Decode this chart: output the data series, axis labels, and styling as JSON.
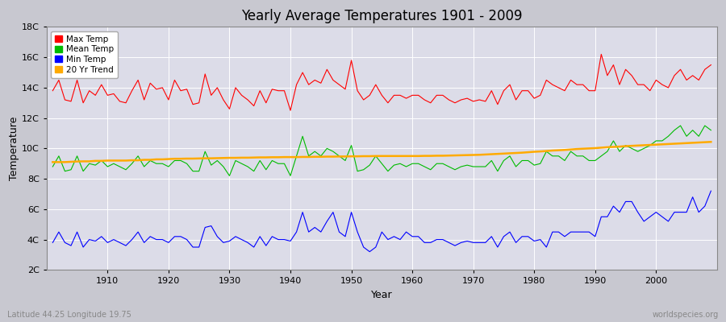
{
  "title": "Yearly Average Temperatures 1901 - 2009",
  "xlabel": "Year",
  "ylabel": "Temperature",
  "bottom_left": "Latitude 44.25 Longitude 19.75",
  "bottom_right": "worldspecies.org",
  "year_start": 1901,
  "year_end": 2009,
  "yticks": [
    2,
    4,
    6,
    8,
    10,
    12,
    14,
    16,
    18
  ],
  "ytick_labels": [
    "2C",
    "4C",
    "6C",
    "8C",
    "10C",
    "12C",
    "14C",
    "16C",
    "18C"
  ],
  "colors": {
    "max": "#ff0000",
    "mean": "#00bb00",
    "min": "#0000ff",
    "trend": "#ffaa00",
    "fig_bg": "#c8c8d0",
    "plot_bg": "#dcdce8",
    "grid": "#ffffff"
  },
  "legend": {
    "max": "Max Temp",
    "mean": "Mean Temp",
    "min": "Min Temp",
    "trend": "20 Yr Trend"
  },
  "max_temp": [
    13.8,
    14.5,
    13.2,
    13.1,
    14.5,
    13.0,
    13.8,
    13.5,
    14.2,
    13.5,
    13.6,
    13.1,
    13.0,
    13.8,
    14.5,
    13.2,
    14.3,
    13.9,
    14.0,
    13.2,
    14.5,
    13.8,
    13.9,
    12.9,
    13.0,
    14.9,
    13.5,
    14.0,
    13.2,
    12.6,
    14.0,
    13.5,
    13.2,
    12.8,
    13.8,
    13.0,
    13.9,
    13.8,
    13.8,
    12.5,
    14.2,
    15.0,
    14.2,
    14.5,
    14.3,
    15.2,
    14.5,
    14.2,
    13.9,
    15.8,
    13.8,
    13.2,
    13.5,
    14.2,
    13.5,
    13.0,
    13.5,
    13.5,
    13.3,
    13.5,
    13.5,
    13.2,
    13.0,
    13.5,
    13.5,
    13.2,
    13.0,
    13.2,
    13.3,
    13.1,
    13.2,
    13.1,
    13.8,
    12.9,
    13.8,
    14.2,
    13.2,
    13.8,
    13.8,
    13.3,
    13.5,
    14.5,
    14.2,
    14.0,
    13.8,
    14.5,
    14.2,
    14.2,
    13.8,
    13.8,
    16.2,
    14.8,
    15.5,
    14.2,
    15.2,
    14.8,
    14.2,
    14.2,
    13.8,
    14.5,
    14.2,
    14.0,
    14.8,
    15.2,
    14.5,
    14.8,
    14.5,
    15.2,
    15.5
  ],
  "mean_temp": [
    8.8,
    9.5,
    8.5,
    8.6,
    9.5,
    8.5,
    9.0,
    8.9,
    9.2,
    8.8,
    9.0,
    8.8,
    8.6,
    9.0,
    9.5,
    8.8,
    9.2,
    9.0,
    9.0,
    8.8,
    9.2,
    9.2,
    9.0,
    8.5,
    8.5,
    9.8,
    8.9,
    9.2,
    8.8,
    8.2,
    9.2,
    9.0,
    8.8,
    8.5,
    9.2,
    8.6,
    9.2,
    9.0,
    9.0,
    8.2,
    9.5,
    10.8,
    9.5,
    9.8,
    9.5,
    10.0,
    9.8,
    9.5,
    9.2,
    10.2,
    8.5,
    8.6,
    8.9,
    9.5,
    9.0,
    8.5,
    8.9,
    9.0,
    8.8,
    9.0,
    9.0,
    8.8,
    8.6,
    9.0,
    9.0,
    8.8,
    8.6,
    8.8,
    8.9,
    8.8,
    8.8,
    8.8,
    9.2,
    8.5,
    9.2,
    9.5,
    8.8,
    9.2,
    9.2,
    8.9,
    9.0,
    9.8,
    9.5,
    9.5,
    9.2,
    9.8,
    9.5,
    9.5,
    9.2,
    9.2,
    9.5,
    9.8,
    10.5,
    9.8,
    10.2,
    10.0,
    9.8,
    10.0,
    10.2,
    10.5,
    10.5,
    10.8,
    11.2,
    11.5,
    10.8,
    11.2,
    10.8,
    11.5,
    11.2
  ],
  "min_temp": [
    3.8,
    4.5,
    3.8,
    3.6,
    4.5,
    3.5,
    4.0,
    3.9,
    4.2,
    3.8,
    4.0,
    3.8,
    3.6,
    4.0,
    4.5,
    3.8,
    4.2,
    4.0,
    4.0,
    3.8,
    4.2,
    4.2,
    4.0,
    3.5,
    3.5,
    4.8,
    4.9,
    4.2,
    3.8,
    3.9,
    4.2,
    4.0,
    3.8,
    3.5,
    4.2,
    3.6,
    4.2,
    4.0,
    4.0,
    3.9,
    4.5,
    5.8,
    4.5,
    4.8,
    4.5,
    5.2,
    5.8,
    4.5,
    4.2,
    5.8,
    4.5,
    3.5,
    3.2,
    3.5,
    4.5,
    4.0,
    4.2,
    4.0,
    4.5,
    4.2,
    4.2,
    3.8,
    3.8,
    4.0,
    4.0,
    3.8,
    3.6,
    3.8,
    3.9,
    3.8,
    3.8,
    3.8,
    4.2,
    3.5,
    4.2,
    4.5,
    3.8,
    4.2,
    4.2,
    3.9,
    4.0,
    3.5,
    4.5,
    4.5,
    4.2,
    4.5,
    4.5,
    4.5,
    4.5,
    4.2,
    5.5,
    5.5,
    6.2,
    5.8,
    6.5,
    6.5,
    5.8,
    5.2,
    5.5,
    5.8,
    5.5,
    5.2,
    5.8,
    5.8,
    5.8,
    6.8,
    5.8,
    6.2,
    7.2
  ],
  "trend": [
    9.1,
    9.1,
    9.1,
    9.12,
    9.14,
    9.15,
    9.15,
    9.18,
    9.18,
    9.2,
    9.2,
    9.2,
    9.2,
    9.22,
    9.22,
    9.25,
    9.25,
    9.28,
    9.28,
    9.3,
    9.32,
    9.32,
    9.33,
    9.33,
    9.34,
    9.35,
    9.35,
    9.36,
    9.37,
    9.38,
    9.38,
    9.39,
    9.39,
    9.4,
    9.41,
    9.41,
    9.42,
    9.42,
    9.43,
    9.43,
    9.43,
    9.44,
    9.44,
    9.45,
    9.45,
    9.46,
    9.46,
    9.47,
    9.47,
    9.48,
    9.48,
    9.49,
    9.49,
    9.5,
    9.5,
    9.5,
    9.5,
    9.5,
    9.5,
    9.5,
    9.5,
    9.51,
    9.51,
    9.52,
    9.52,
    9.53,
    9.54,
    9.55,
    9.56,
    9.57,
    9.58,
    9.6,
    9.62,
    9.64,
    9.66,
    9.68,
    9.7,
    9.72,
    9.75,
    9.78,
    9.8,
    9.83,
    9.86,
    9.88,
    9.9,
    9.93,
    9.96,
    9.98,
    10.0,
    10.02,
    10.05,
    10.08,
    10.1,
    10.12,
    10.15,
    10.17,
    10.19,
    10.21,
    10.23,
    10.25,
    10.27,
    10.29,
    10.31,
    10.33,
    10.35,
    10.37,
    10.39,
    10.41,
    10.43
  ]
}
